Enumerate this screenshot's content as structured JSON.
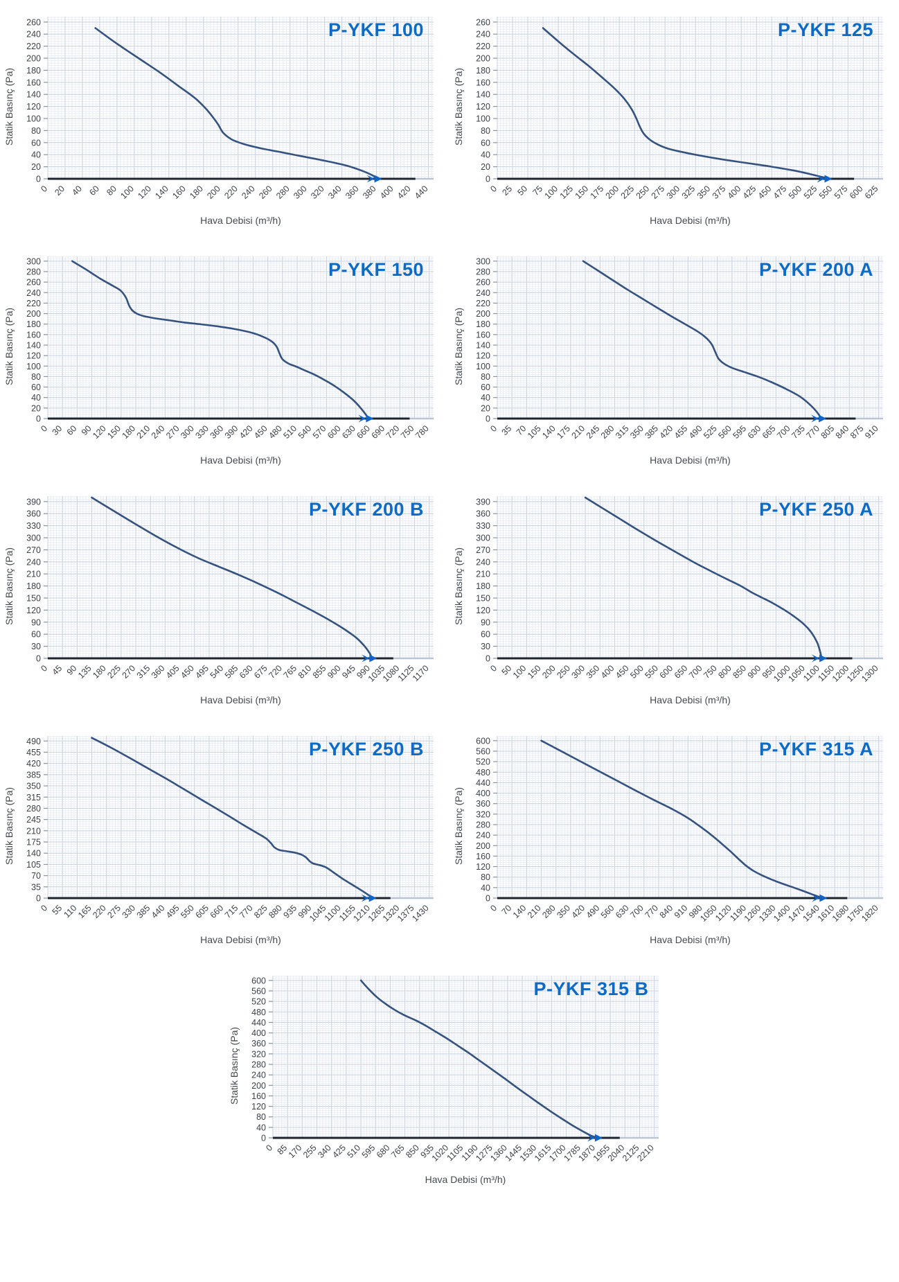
{
  "page": {
    "background": "#ffffff",
    "description": "Fan performance curves sheet, P-YKF series"
  },
  "axes": {
    "x_label": "Hava Debisi (m³/h)",
    "y_label": "Statik Basınç (Pa)"
  },
  "style": {
    "title_color": "#0d6bc5",
    "curve_color": "#35527e",
    "arrow_color": "#1263c6",
    "grid_minor": "#e9edf4",
    "grid_major": "#c9d2dd",
    "axis_dark": "#1d242e",
    "axis_light": "#b9c5d2",
    "tick_text": "#3c4148",
    "axis_title_text": "#45494f"
  },
  "chart_data": [
    {
      "type": "line",
      "title": "P-YKF 100",
      "xlabel": "Hava Debisi (m³/h)",
      "ylabel": "Statik Basınç (Pa)",
      "xlim": [
        0,
        440
      ],
      "ylim": [
        0,
        260
      ],
      "x_ticks": [
        0,
        20,
        40,
        60,
        80,
        100,
        120,
        140,
        160,
        180,
        200,
        220,
        240,
        260,
        280,
        300,
        320,
        340,
        360,
        380,
        400,
        420,
        440
      ],
      "y_ticks": [
        0,
        20,
        40,
        60,
        80,
        100,
        120,
        140,
        160,
        180,
        200,
        220,
        240,
        260
      ],
      "points": [
        [
          55,
          250
        ],
        [
          80,
          224
        ],
        [
          105,
          200
        ],
        [
          130,
          176
        ],
        [
          152,
          153
        ],
        [
          170,
          134
        ],
        [
          183,
          116
        ],
        [
          192,
          100
        ],
        [
          197,
          90
        ],
        [
          203,
          76
        ],
        [
          213,
          65
        ],
        [
          228,
          57
        ],
        [
          248,
          50
        ],
        [
          270,
          44
        ],
        [
          295,
          37
        ],
        [
          320,
          30
        ],
        [
          345,
          22
        ],
        [
          362,
          14
        ],
        [
          375,
          6
        ],
        [
          380,
          1
        ]
      ],
      "curve_end_arrow_x": 380,
      "axis_line_end_x": 425
    },
    {
      "type": "line",
      "title": "P-YKF 125",
      "xlabel": "Hava Debisi (m³/h)",
      "ylabel": "Statik Basınç (Pa)",
      "xlim": [
        0,
        625
      ],
      "ylim": [
        0,
        260
      ],
      "x_ticks": [
        0,
        25,
        50,
        75,
        100,
        125,
        150,
        175,
        200,
        225,
        250,
        275,
        300,
        325,
        350,
        375,
        400,
        425,
        450,
        475,
        500,
        525,
        550,
        575,
        600,
        625
      ],
      "y_ticks": [
        0,
        20,
        40,
        60,
        80,
        100,
        120,
        140,
        160,
        180,
        200,
        220,
        240,
        260
      ],
      "points": [
        [
          75,
          250
        ],
        [
          100,
          228
        ],
        [
          125,
          207
        ],
        [
          150,
          187
        ],
        [
          172,
          168
        ],
        [
          192,
          150
        ],
        [
          208,
          133
        ],
        [
          220,
          116
        ],
        [
          228,
          100
        ],
        [
          233,
          88
        ],
        [
          240,
          75
        ],
        [
          250,
          65
        ],
        [
          263,
          57
        ],
        [
          280,
          50
        ],
        [
          305,
          44
        ],
        [
          335,
          38
        ],
        [
          370,
          32
        ],
        [
          410,
          26
        ],
        [
          450,
          20
        ],
        [
          490,
          13
        ],
        [
          520,
          6
        ],
        [
          540,
          1
        ]
      ],
      "curve_end_arrow_x": 540,
      "axis_line_end_x": 585
    },
    {
      "type": "line",
      "title": "P-YKF 150",
      "xlabel": "Hava Debisi (m³/h)",
      "ylabel": "Statik Basınç (Pa)",
      "xlim": [
        0,
        780
      ],
      "ylim": [
        0,
        300
      ],
      "x_ticks": [
        0,
        30,
        60,
        90,
        120,
        150,
        180,
        210,
        240,
        270,
        300,
        330,
        360,
        390,
        420,
        450,
        480,
        510,
        540,
        570,
        600,
        630,
        660,
        690,
        720,
        750,
        780
      ],
      "y_ticks": [
        0,
        20,
        40,
        60,
        80,
        100,
        120,
        140,
        160,
        180,
        200,
        220,
        240,
        260,
        280,
        300
      ],
      "points": [
        [
          50,
          300
        ],
        [
          80,
          283
        ],
        [
          110,
          265
        ],
        [
          135,
          252
        ],
        [
          150,
          243
        ],
        [
          160,
          230
        ],
        [
          166,
          216
        ],
        [
          172,
          207
        ],
        [
          182,
          200
        ],
        [
          197,
          195
        ],
        [
          220,
          191
        ],
        [
          250,
          187
        ],
        [
          280,
          183
        ],
        [
          310,
          180
        ],
        [
          345,
          176
        ],
        [
          380,
          171
        ],
        [
          415,
          164
        ],
        [
          440,
          156
        ],
        [
          458,
          147
        ],
        [
          468,
          137
        ],
        [
          474,
          124
        ],
        [
          480,
          113
        ],
        [
          492,
          105
        ],
        [
          508,
          99
        ],
        [
          525,
          92
        ],
        [
          545,
          84
        ],
        [
          565,
          74
        ],
        [
          585,
          63
        ],
        [
          605,
          50
        ],
        [
          625,
          35
        ],
        [
          640,
          20
        ],
        [
          650,
          8
        ],
        [
          655,
          1
        ]
      ],
      "curve_end_arrow_x": 655,
      "axis_line_end_x": 740
    },
    {
      "type": "line",
      "title": "P-YKF 200 A",
      "xlabel": "Hava Debisi (m³/h)",
      "ylabel": "Statik Basınç (Pa)",
      "xlim": [
        0,
        910
      ],
      "ylim": [
        0,
        300
      ],
      "x_ticks": [
        0,
        35,
        70,
        105,
        140,
        175,
        210,
        245,
        280,
        315,
        350,
        385,
        420,
        455,
        490,
        525,
        560,
        595,
        630,
        665,
        700,
        735,
        770,
        805,
        840,
        875,
        910
      ],
      "y_ticks": [
        0,
        20,
        40,
        60,
        80,
        100,
        120,
        140,
        160,
        180,
        200,
        220,
        240,
        260,
        280,
        300
      ],
      "points": [
        [
          205,
          300
        ],
        [
          240,
          282
        ],
        [
          275,
          264
        ],
        [
          310,
          246
        ],
        [
          345,
          229
        ],
        [
          380,
          212
        ],
        [
          415,
          195
        ],
        [
          450,
          179
        ],
        [
          478,
          166
        ],
        [
          498,
          154
        ],
        [
          512,
          141
        ],
        [
          520,
          127
        ],
        [
          528,
          114
        ],
        [
          542,
          104
        ],
        [
          562,
          96
        ],
        [
          592,
          88
        ],
        [
          625,
          79
        ],
        [
          658,
          68
        ],
        [
          690,
          56
        ],
        [
          722,
          42
        ],
        [
          748,
          25
        ],
        [
          765,
          10
        ],
        [
          772,
          1
        ]
      ],
      "curve_end_arrow_x": 772,
      "axis_line_end_x": 855
    },
    {
      "type": "line",
      "title": "P-YKF 200 B",
      "xlabel": "Hava Debisi (m³/h)",
      "ylabel": "Statik Basınç (Pa)",
      "xlim": [
        0,
        1170
      ],
      "ylim": [
        0,
        390
      ],
      "x_ticks": [
        0,
        45,
        90,
        135,
        180,
        225,
        270,
        315,
        360,
        405,
        450,
        495,
        540,
        585,
        630,
        675,
        720,
        765,
        810,
        855,
        900,
        945,
        990,
        1035,
        1080,
        1125,
        1170
      ],
      "y_ticks": [
        0,
        30,
        60,
        90,
        120,
        150,
        180,
        210,
        240,
        270,
        300,
        330,
        360,
        390
      ],
      "points": [
        [
          135,
          400
        ],
        [
          200,
          368
        ],
        [
          265,
          336
        ],
        [
          330,
          305
        ],
        [
          395,
          276
        ],
        [
          460,
          250
        ],
        [
          525,
          228
        ],
        [
          585,
          208
        ],
        [
          635,
          190
        ],
        [
          680,
          173
        ],
        [
          725,
          155
        ],
        [
          770,
          136
        ],
        [
          815,
          117
        ],
        [
          860,
          97
        ],
        [
          905,
          75
        ],
        [
          945,
          52
        ],
        [
          970,
          32
        ],
        [
          988,
          12
        ],
        [
          993,
          2
        ]
      ],
      "curve_end_arrow_x": 993,
      "axis_line_end_x": 1060
    },
    {
      "type": "line",
      "title": "P-YKF 250 A",
      "xlabel": "Hava Debisi (m³/h)",
      "ylabel": "Statik Basınç (Pa)",
      "xlim": [
        0,
        1300
      ],
      "ylim": [
        0,
        390
      ],
      "x_ticks": [
        0,
        50,
        100,
        150,
        200,
        250,
        300,
        350,
        400,
        450,
        500,
        550,
        600,
        650,
        700,
        750,
        800,
        850,
        900,
        950,
        1000,
        1050,
        1100,
        1150,
        1200,
        1250,
        1300
      ],
      "y_ticks": [
        0,
        30,
        60,
        90,
        120,
        150,
        180,
        210,
        240,
        270,
        300,
        330,
        360,
        390
      ],
      "points": [
        [
          300,
          400
        ],
        [
          360,
          373
        ],
        [
          420,
          346
        ],
        [
          480,
          319
        ],
        [
          540,
          293
        ],
        [
          600,
          268
        ],
        [
          660,
          243
        ],
        [
          720,
          220
        ],
        [
          780,
          198
        ],
        [
          830,
          180
        ],
        [
          870,
          163
        ],
        [
          905,
          150
        ],
        [
          940,
          137
        ],
        [
          975,
          122
        ],
        [
          1010,
          105
        ],
        [
          1045,
          85
        ],
        [
          1070,
          65
        ],
        [
          1090,
          40
        ],
        [
          1100,
          18
        ],
        [
          1105,
          2
        ]
      ],
      "curve_end_arrow_x": 1105,
      "axis_line_end_x": 1210
    },
    {
      "type": "line",
      "title": "P-YKF 250 B",
      "xlabel": "Hava Debisi (m³/h)",
      "ylabel": "Statik Basınç (Pa)",
      "xlim": [
        0,
        1430
      ],
      "ylim": [
        0,
        490
      ],
      "x_ticks": [
        0,
        55,
        110,
        165,
        220,
        275,
        330,
        385,
        440,
        495,
        550,
        605,
        660,
        715,
        770,
        825,
        880,
        935,
        990,
        1045,
        1100,
        1155,
        1210,
        1265,
        1320,
        1375,
        1430
      ],
      "y_ticks": [
        0,
        35,
        70,
        105,
        140,
        175,
        210,
        245,
        280,
        315,
        350,
        385,
        420,
        455,
        490
      ],
      "points": [
        [
          165,
          500
        ],
        [
          235,
          470
        ],
        [
          305,
          438
        ],
        [
          375,
          405
        ],
        [
          445,
          372
        ],
        [
          510,
          340
        ],
        [
          570,
          310
        ],
        [
          625,
          283
        ],
        [
          675,
          258
        ],
        [
          720,
          235
        ],
        [
          760,
          215
        ],
        [
          795,
          198
        ],
        [
          820,
          185
        ],
        [
          838,
          170
        ],
        [
          850,
          158
        ],
        [
          868,
          150
        ],
        [
          895,
          146
        ],
        [
          925,
          142
        ],
        [
          950,
          136
        ],
        [
          968,
          127
        ],
        [
          982,
          115
        ],
        [
          995,
          108
        ],
        [
          1018,
          103
        ],
        [
          1040,
          97
        ],
        [
          1058,
          88
        ],
        [
          1080,
          75
        ],
        [
          1110,
          58
        ],
        [
          1145,
          40
        ],
        [
          1180,
          22
        ],
        [
          1205,
          8
        ],
        [
          1212,
          2
        ]
      ],
      "curve_end_arrow_x": 1212,
      "axis_line_end_x": 1285
    },
    {
      "type": "line",
      "title": "P-YKF 315 A",
      "xlabel": "Hava Debisi (m³/h)",
      "ylabel": "Statik Basınç (Pa)",
      "xlim": [
        0,
        1820
      ],
      "ylim": [
        0,
        600
      ],
      "x_ticks": [
        0,
        70,
        140,
        210,
        280,
        350,
        420,
        490,
        560,
        630,
        700,
        770,
        840,
        910,
        980,
        1050,
        1120,
        1190,
        1260,
        1330,
        1400,
        1470,
        1540,
        1610,
        1680,
        1750,
        1820
      ],
      "y_ticks": [
        0,
        40,
        80,
        120,
        160,
        200,
        240,
        280,
        320,
        360,
        400,
        440,
        480,
        520,
        560,
        600
      ],
      "points": [
        [
          210,
          600
        ],
        [
          300,
          562
        ],
        [
          390,
          524
        ],
        [
          480,
          486
        ],
        [
          570,
          448
        ],
        [
          660,
          410
        ],
        [
          750,
          373
        ],
        [
          840,
          337
        ],
        [
          910,
          305
        ],
        [
          950,
          283
        ],
        [
          990,
          260
        ],
        [
          1030,
          235
        ],
        [
          1070,
          208
        ],
        [
          1110,
          180
        ],
        [
          1150,
          150
        ],
        [
          1185,
          125
        ],
        [
          1220,
          105
        ],
        [
          1260,
          88
        ],
        [
          1305,
          72
        ],
        [
          1350,
          58
        ],
        [
          1400,
          44
        ],
        [
          1450,
          30
        ],
        [
          1500,
          15
        ],
        [
          1535,
          5
        ],
        [
          1548,
          1
        ]
      ],
      "curve_end_arrow_x": 1548,
      "axis_line_end_x": 1670
    },
    {
      "type": "line",
      "title": "P-YKF 315 B",
      "xlabel": "Hava Debisi (m³/h)",
      "ylabel": "Statik Basınç (Pa)",
      "xlim": [
        0,
        2210
      ],
      "ylim": [
        0,
        600
      ],
      "x_ticks": [
        0,
        85,
        170,
        255,
        340,
        425,
        510,
        595,
        680,
        765,
        850,
        935,
        1020,
        1105,
        1190,
        1275,
        1360,
        1445,
        1530,
        1615,
        1700,
        1785,
        1870,
        1955,
        2040,
        2125,
        2210
      ],
      "y_ticks": [
        0,
        40,
        80,
        120,
        160,
        200,
        240,
        280,
        320,
        360,
        400,
        440,
        480,
        520,
        560,
        600
      ],
      "points": [
        [
          510,
          600
        ],
        [
          555,
          567
        ],
        [
          600,
          538
        ],
        [
          650,
          512
        ],
        [
          705,
          488
        ],
        [
          760,
          468
        ],
        [
          830,
          447
        ],
        [
          890,
          426
        ],
        [
          950,
          402
        ],
        [
          1010,
          378
        ],
        [
          1070,
          352
        ],
        [
          1130,
          326
        ],
        [
          1190,
          298
        ],
        [
          1250,
          270
        ],
        [
          1310,
          242
        ],
        [
          1370,
          213
        ],
        [
          1430,
          184
        ],
        [
          1490,
          156
        ],
        [
          1550,
          128
        ],
        [
          1610,
          101
        ],
        [
          1670,
          75
        ],
        [
          1730,
          50
        ],
        [
          1790,
          27
        ],
        [
          1845,
          8
        ],
        [
          1878,
          1
        ]
      ],
      "curve_end_arrow_x": 1878,
      "axis_line_end_x": 2010
    }
  ]
}
